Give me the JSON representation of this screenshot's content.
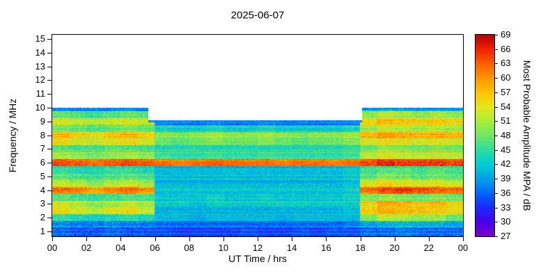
{
  "chart_data": {
    "type": "heatmap",
    "title": "2025-06-07",
    "xlabel": "UT Time / hrs",
    "ylabel": "Frequency / MHz",
    "colorbar_label": "Most Probable Amplitude MPA / dB",
    "x_ticks": [
      "00",
      "02",
      "04",
      "06",
      "08",
      "10",
      "12",
      "14",
      "16",
      "18",
      "20",
      "22",
      "00"
    ],
    "y_ticks": [
      15,
      14,
      13,
      12,
      11,
      10,
      9,
      8,
      7,
      6,
      5,
      4,
      3,
      2,
      1
    ],
    "colorbar_ticks": [
      69,
      66,
      63,
      60,
      57,
      54,
      51,
      48,
      45,
      42,
      39,
      36,
      33,
      30,
      27
    ],
    "x_range_hrs": [
      0,
      24
    ],
    "y_range_mhz": [
      0.65,
      15.3
    ],
    "value_range_db": [
      27,
      69
    ],
    "grid_on": false,
    "legend_position": "right-colorbar",
    "background_color": "#ffffff",
    "data_extent": {
      "freq_min_mhz": 1.0,
      "freq_max_night_mhz": 10.0,
      "freq_max_day_mhz": 9.1,
      "day_start_hr": 5.6,
      "day_end_hr": 18.1
    },
    "grid": {
      "time_hours": [
        0,
        1,
        2,
        3,
        4,
        5,
        6,
        7,
        8,
        9,
        10,
        11,
        12,
        13,
        14,
        15,
        16,
        17,
        18,
        19,
        20,
        21,
        22,
        23
      ],
      "freq_mhz": [
        1,
        1.5,
        2,
        2.5,
        3,
        3.5,
        4,
        4.5,
        5,
        5.5,
        6,
        6.5,
        7,
        7.5,
        8,
        8.5,
        9,
        9.5,
        10
      ],
      "values_db": [
        [
          36,
          35,
          35,
          36,
          35,
          35,
          35,
          34,
          34,
          34,
          34,
          35,
          34,
          34,
          35,
          34,
          35,
          35,
          36,
          36,
          37,
          36,
          36,
          36
        ],
        [
          39,
          38,
          38,
          39,
          38,
          38,
          37,
          37,
          37,
          37,
          37,
          37,
          37,
          37,
          37,
          37,
          37,
          38,
          40,
          41,
          42,
          41,
          41,
          40
        ],
        [
          45,
          44,
          43,
          44,
          45,
          44,
          41,
          41,
          40,
          41,
          41,
          41,
          41,
          40,
          41,
          41,
          41,
          41,
          49,
          52,
          51,
          50,
          50,
          48
        ],
        [
          56,
          54,
          52,
          55,
          56,
          53,
          41,
          41,
          41,
          41,
          41,
          41,
          41,
          41,
          41,
          41,
          41,
          42,
          57,
          59,
          58,
          58,
          57,
          56
        ],
        [
          53,
          51,
          49,
          50,
          52,
          50,
          42,
          42,
          41,
          42,
          42,
          42,
          42,
          42,
          42,
          42,
          42,
          42,
          55,
          58,
          57,
          56,
          57,
          55
        ],
        [
          47,
          46,
          45,
          46,
          47,
          46,
          42,
          42,
          42,
          43,
          42,
          42,
          43,
          42,
          42,
          42,
          42,
          43,
          49,
          50,
          49,
          48,
          49,
          48
        ],
        [
          61,
          60,
          58,
          60,
          61,
          59,
          41,
          41,
          41,
          41,
          41,
          41,
          41,
          41,
          41,
          41,
          41,
          42,
          61,
          63,
          64,
          63,
          62,
          61
        ],
        [
          53,
          52,
          50,
          52,
          53,
          51,
          41,
          41,
          41,
          41,
          41,
          41,
          41,
          41,
          41,
          41,
          41,
          42,
          54,
          56,
          55,
          54,
          55,
          53
        ],
        [
          47,
          46,
          45,
          46,
          47,
          46,
          41,
          41,
          41,
          41,
          41,
          41,
          41,
          41,
          41,
          41,
          41,
          42,
          47,
          49,
          48,
          47,
          48,
          47
        ],
        [
          44,
          43,
          43,
          44,
          44,
          43,
          40,
          40,
          40,
          40,
          40,
          40,
          40,
          40,
          40,
          40,
          40,
          41,
          45,
          46,
          46,
          45,
          46,
          45
        ],
        [
          64,
          63,
          62,
          63,
          64,
          63,
          62,
          61,
          62,
          63,
          62,
          62,
          62,
          61,
          62,
          62,
          61,
          62,
          64,
          66,
          65,
          65,
          65,
          64
        ],
        [
          51,
          50,
          49,
          50,
          51,
          50,
          46,
          45,
          45,
          46,
          45,
          45,
          46,
          45,
          45,
          45,
          45,
          46,
          52,
          54,
          53,
          52,
          53,
          52
        ],
        [
          47,
          46,
          46,
          47,
          47,
          46,
          44,
          44,
          44,
          44,
          44,
          44,
          44,
          44,
          44,
          44,
          44,
          45,
          48,
          50,
          49,
          48,
          49,
          48
        ],
        [
          55,
          53,
          52,
          54,
          55,
          53,
          48,
          47,
          48,
          49,
          48,
          48,
          49,
          48,
          47,
          48,
          48,
          49,
          53,
          55,
          54,
          53,
          54,
          53
        ],
        [
          58,
          56,
          55,
          57,
          58,
          56,
          50,
          49,
          50,
          51,
          50,
          50,
          51,
          50,
          49,
          50,
          50,
          51,
          58,
          60,
          59,
          58,
          59,
          58
        ],
        [
          49,
          48,
          47,
          48,
          49,
          48,
          44,
          43,
          43,
          44,
          43,
          43,
          44,
          43,
          43,
          43,
          43,
          44,
          51,
          53,
          52,
          51,
          52,
          51
        ],
        [
          53,
          52,
          51,
          52,
          53,
          52,
          38,
          37,
          37,
          38,
          37,
          37,
          38,
          37,
          37,
          37,
          37,
          38,
          55,
          57,
          56,
          55,
          56,
          55
        ],
        [
          47,
          46,
          45,
          46,
          47,
          46,
          null,
          null,
          null,
          null,
          null,
          null,
          null,
          null,
          null,
          null,
          null,
          null,
          49,
          51,
          50,
          49,
          50,
          49
        ],
        [
          39,
          38,
          38,
          39,
          39,
          38,
          null,
          null,
          null,
          null,
          null,
          null,
          null,
          null,
          null,
          null,
          null,
          null,
          41,
          43,
          42,
          41,
          42,
          41
        ]
      ]
    },
    "colormap_stops": [
      {
        "db": 27,
        "color": "#7a00cc"
      },
      {
        "db": 30,
        "color": "#4a00e6"
      },
      {
        "db": 33,
        "color": "#1a2aff"
      },
      {
        "db": 36,
        "color": "#0066ff"
      },
      {
        "db": 39,
        "color": "#00a2e8"
      },
      {
        "db": 42,
        "color": "#00ccd5"
      },
      {
        "db": 45,
        "color": "#2edda0"
      },
      {
        "db": 48,
        "color": "#70e663"
      },
      {
        "db": 51,
        "color": "#aaee38"
      },
      {
        "db": 54,
        "color": "#e6e61e"
      },
      {
        "db": 57,
        "color": "#ffc400"
      },
      {
        "db": 60,
        "color": "#ff9500"
      },
      {
        "db": 63,
        "color": "#ff5e00"
      },
      {
        "db": 66,
        "color": "#ee2200"
      },
      {
        "db": 69,
        "color": "#b30000"
      }
    ]
  }
}
